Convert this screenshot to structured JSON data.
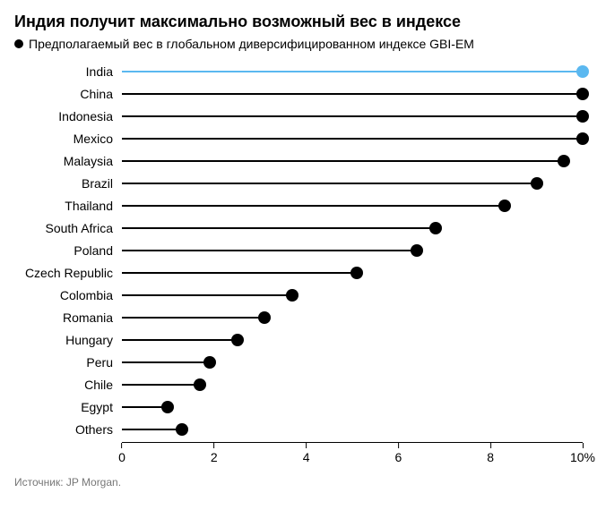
{
  "title": "Индия получит максимально возможный вес в индексе",
  "subtitle": "Предполагаемый вес в глобальном диверсифицированном индексе GBI-EM",
  "source": "Источник: JP Morgan.",
  "chart": {
    "type": "lollipop",
    "x_min": 0,
    "x_max": 10,
    "tick_step": 2,
    "tick_labels": [
      "0",
      "2",
      "4",
      "6",
      "8",
      "10%"
    ],
    "title_fontsize": 18,
    "subtitle_fontsize": 14,
    "label_fontsize": 14,
    "tick_fontsize": 14,
    "background_color": "#ffffff",
    "axis_color": "#000000",
    "line_width": 2,
    "marker_radius": 7,
    "highlight_color": "#5bb8f0",
    "default_color": "#000000",
    "series": [
      {
        "label": "India",
        "value": 10.0,
        "highlight": true
      },
      {
        "label": "China",
        "value": 10.0,
        "highlight": false
      },
      {
        "label": "Indonesia",
        "value": 10.0,
        "highlight": false
      },
      {
        "label": "Mexico",
        "value": 10.0,
        "highlight": false
      },
      {
        "label": "Malaysia",
        "value": 9.6,
        "highlight": false
      },
      {
        "label": "Brazil",
        "value": 9.0,
        "highlight": false
      },
      {
        "label": "Thailand",
        "value": 8.3,
        "highlight": false
      },
      {
        "label": "South Africa",
        "value": 6.8,
        "highlight": false
      },
      {
        "label": "Poland",
        "value": 6.4,
        "highlight": false
      },
      {
        "label": "Czech Republic",
        "value": 5.1,
        "highlight": false
      },
      {
        "label": "Colombia",
        "value": 3.7,
        "highlight": false
      },
      {
        "label": "Romania",
        "value": 3.1,
        "highlight": false
      },
      {
        "label": "Hungary",
        "value": 2.5,
        "highlight": false
      },
      {
        "label": "Peru",
        "value": 1.9,
        "highlight": false
      },
      {
        "label": "Chile",
        "value": 1.7,
        "highlight": false
      },
      {
        "label": "Egypt",
        "value": 1.0,
        "highlight": false
      },
      {
        "label": "Others",
        "value": 1.3,
        "highlight": false
      }
    ]
  }
}
